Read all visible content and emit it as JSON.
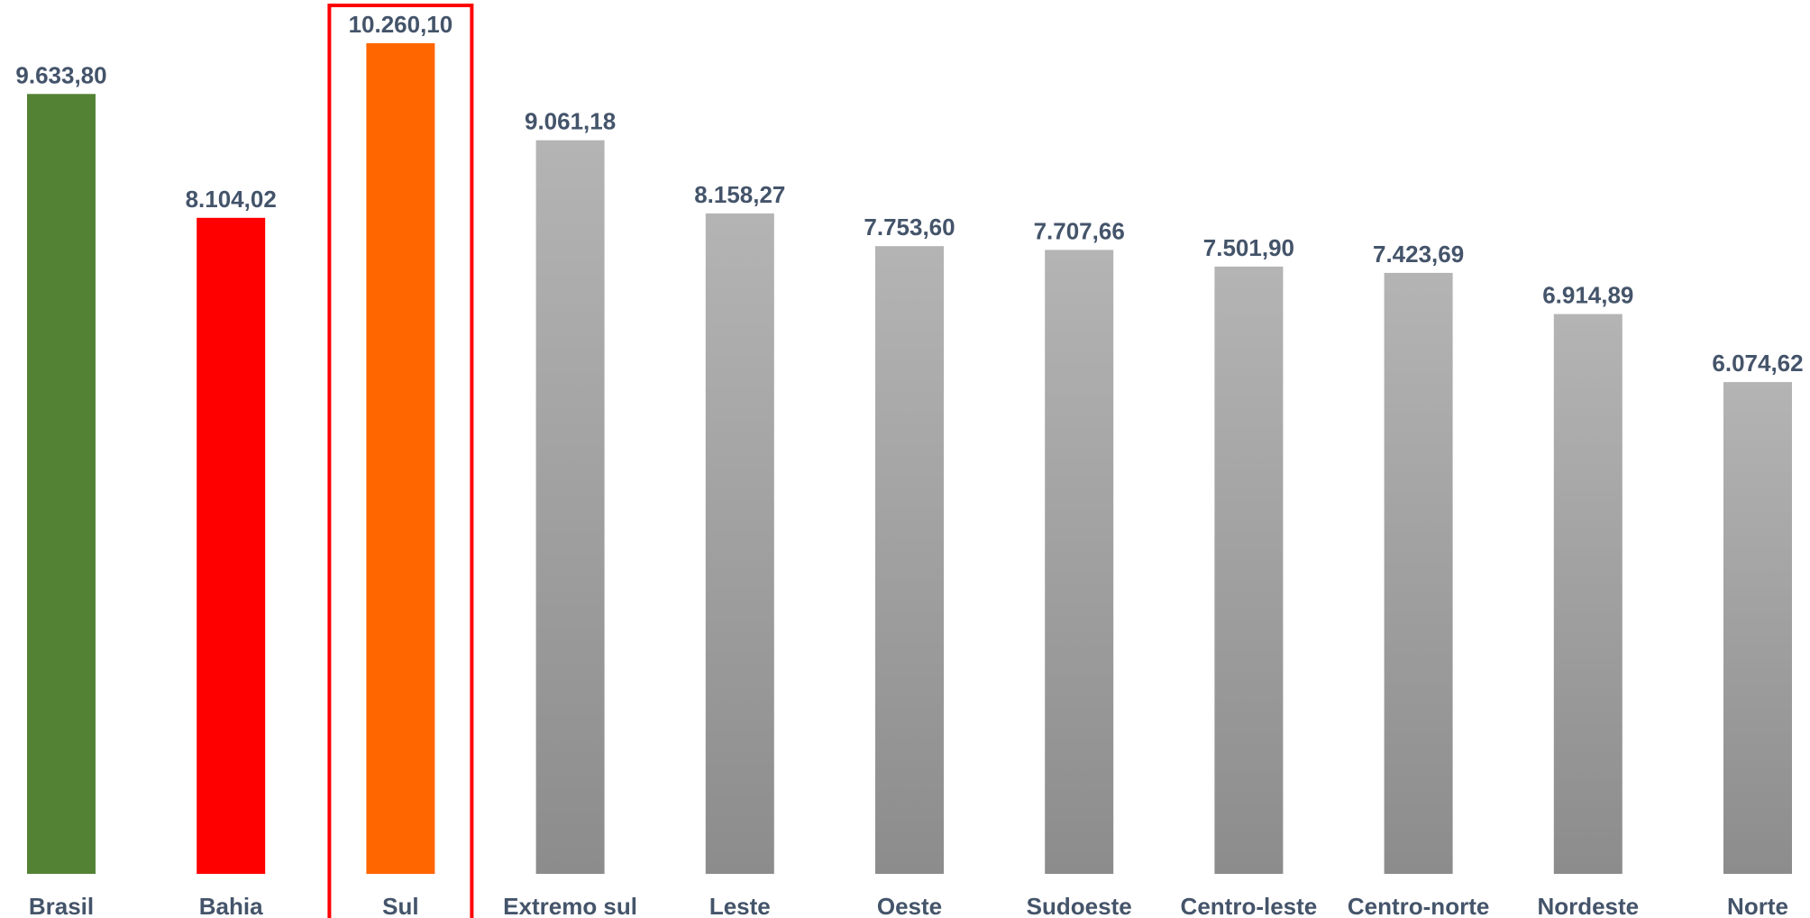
{
  "chart_data": {
    "type": "bar",
    "title": "",
    "xlabel": "",
    "ylabel": "",
    "categories": [
      "Brasil",
      "Bahia",
      "Sul",
      "Extremo sul",
      "Leste",
      "Oeste",
      "Sudoeste",
      "Centro-leste",
      "Centro-norte",
      "Nordeste",
      "Norte"
    ],
    "values": [
      9633.8,
      8104.02,
      10260.1,
      9061.18,
      8158.27,
      7753.6,
      7707.66,
      7501.9,
      7423.69,
      6914.89,
      6074.62
    ],
    "value_labels": [
      "9.633,80",
      "8.104,02",
      "10.260,10",
      "9.061,18",
      "8.158,27",
      "7.753,60",
      "7.707,66",
      "7.501,90",
      "7.423,69",
      "6.914,89",
      "6.074,62"
    ],
    "bar_colors": [
      "#548235",
      "#ff0000",
      "#ff6600",
      "gray-gradient",
      "gray-gradient",
      "gray-gradient",
      "gray-gradient",
      "gray-gradient",
      "gray-gradient",
      "gray-gradient",
      "gray-gradient"
    ],
    "gray_gradient": [
      "#b4b4b4",
      "#8c8c8c"
    ],
    "label_color": "#44546a",
    "highlight": {
      "category": "Sul",
      "border_color": "#ff0000"
    },
    "ylim": [
      0,
      10260.1
    ],
    "grid": false,
    "legend": "none"
  }
}
